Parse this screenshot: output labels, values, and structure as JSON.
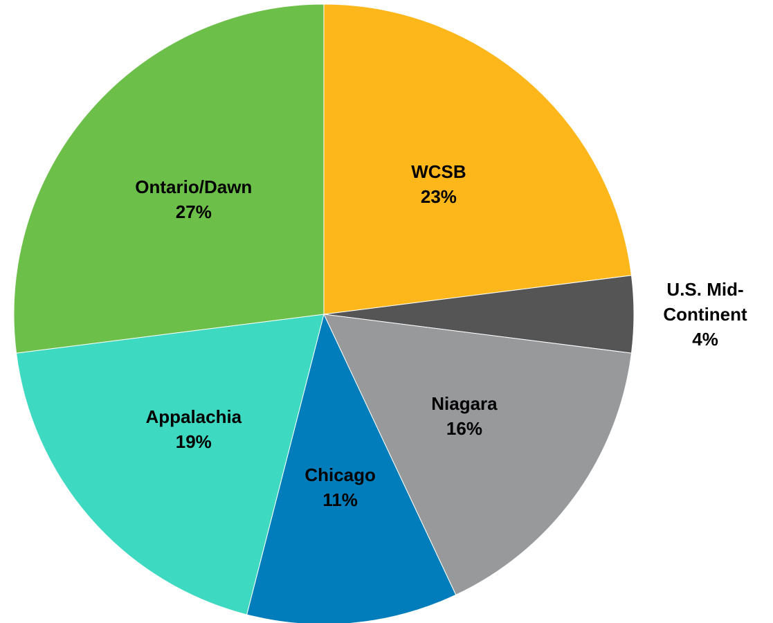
{
  "chart_data": {
    "type": "pie",
    "categories": [
      "WCSB",
      "U.S. Mid-Continent",
      "Niagara",
      "Chicago",
      "Appalachia",
      "Ontario/Dawn"
    ],
    "values": [
      23,
      4,
      16,
      11,
      19,
      27
    ],
    "value_labels": [
      "23%",
      "4%",
      "16%",
      "11%",
      "19%",
      "27%"
    ],
    "colors": [
      "#FDB71A",
      "#555555",
      "#97999B",
      "#007DBA",
      "#3DD9C1",
      "#6CC04A"
    ]
  }
}
